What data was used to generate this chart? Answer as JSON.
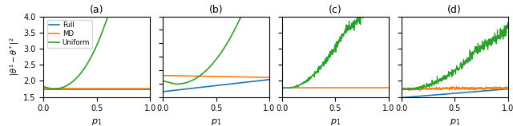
{
  "title_a": "(a)",
  "title_b": "(b)",
  "title_c": "(c)",
  "title_d": "(d)",
  "xlabel": "$p_1$",
  "ylabel": "$|\\theta^1 - \\theta^*|^2$",
  "ylim": [
    1.5,
    4.0
  ],
  "ylim_b": [
    1.0,
    4.0
  ],
  "xlim": [
    0.0,
    1.0
  ],
  "yticks_a": [
    1.5,
    2.0,
    2.5,
    3.0,
    3.5,
    4.0
  ],
  "yticks_b": [
    1.0,
    1.5,
    2.0,
    2.5,
    3.0,
    3.5,
    4.0
  ],
  "xticks": [
    0.0,
    0.5,
    1.0
  ],
  "colors": {
    "full": "#1f77b4",
    "md": "#ff7f0e",
    "uniform": "#2ca02c"
  },
  "legend_labels": [
    "Full",
    "MD",
    "Uniform"
  ]
}
